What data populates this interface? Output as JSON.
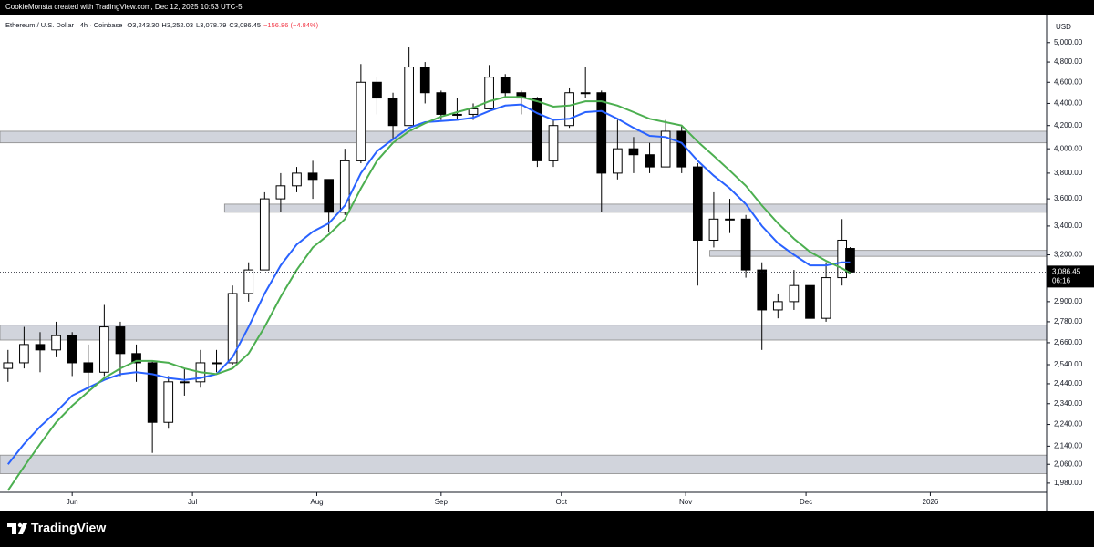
{
  "chart_data": {
    "type": "candlestick",
    "attribution": "CookieMonsta created with TradingView.com, Dec 12, 2025 10:53 UTC-5",
    "symbol": "Ethereum / U.S. Dollar · 4h · Coinbase",
    "ohlc_labels": [
      "O3,243.30",
      "H3,252.03",
      "L3,078.79",
      "C3,086.45",
      "−156.86 (−4.84%)"
    ],
    "currency": "USD",
    "branding": "TradingView",
    "log_scale": true,
    "ylim": [
      1942,
      5304
    ],
    "yticks": [
      {
        "value": 5000,
        "label": "5,000.00"
      },
      {
        "value": 4800,
        "label": "4,800.00"
      },
      {
        "value": 4600,
        "label": "4,600.00"
      },
      {
        "value": 4400,
        "label": "4,400.00"
      },
      {
        "value": 4200,
        "label": "4,200.00"
      },
      {
        "value": 4000,
        "label": "4,000.00"
      },
      {
        "value": 3800,
        "label": "3,800.00"
      },
      {
        "value": 3600,
        "label": "3,600.00"
      },
      {
        "value": 3400,
        "label": "3,400.00"
      },
      {
        "value": 3200,
        "label": "3,200.00"
      },
      {
        "value": 2900,
        "label": "2,900.00"
      },
      {
        "value": 2780,
        "label": "2,780.00"
      },
      {
        "value": 2660,
        "label": "2,660.00"
      },
      {
        "value": 2540,
        "label": "2,540.00"
      },
      {
        "value": 2440,
        "label": "2,440.00"
      },
      {
        "value": 2340,
        "label": "2,340.00"
      },
      {
        "value": 2240,
        "label": "2,240.00"
      },
      {
        "value": 2140,
        "label": "2,140.00"
      },
      {
        "value": 2060,
        "label": "2,060.00"
      },
      {
        "value": 1980,
        "label": "1,980.00"
      }
    ],
    "xlim": [
      "2025-05-14",
      "2026-01-30"
    ],
    "xticks": [
      {
        "value": "2025-06-01",
        "label": "Jun"
      },
      {
        "value": "2025-07-01",
        "label": "Jul"
      },
      {
        "value": "2025-08-01",
        "label": "Aug"
      },
      {
        "value": "2025-09-01",
        "label": "Sep"
      },
      {
        "value": "2025-10-01",
        "label": "Oct"
      },
      {
        "value": "2025-11-01",
        "label": "Nov"
      },
      {
        "value": "2025-12-01",
        "label": "Dec"
      },
      {
        "value": "2026-01-01",
        "label": "2026"
      }
    ],
    "last_price": {
      "value": 3086.45,
      "label": "3,086.45"
    },
    "countdown": "06:16",
    "x": [
      "2025-05-16",
      "2025-05-20",
      "2025-05-24",
      "2025-05-28",
      "2025-06-01",
      "2025-06-05",
      "2025-06-09",
      "2025-06-13",
      "2025-06-17",
      "2025-06-21",
      "2025-06-25",
      "2025-06-29",
      "2025-07-03",
      "2025-07-07",
      "2025-07-11",
      "2025-07-15",
      "2025-07-19",
      "2025-07-23",
      "2025-07-27",
      "2025-07-31",
      "2025-08-04",
      "2025-08-08",
      "2025-08-12",
      "2025-08-16",
      "2025-08-20",
      "2025-08-24",
      "2025-08-28",
      "2025-09-01",
      "2025-09-05",
      "2025-09-09",
      "2025-09-13",
      "2025-09-17",
      "2025-09-21",
      "2025-09-25",
      "2025-09-29",
      "2025-10-03",
      "2025-10-07",
      "2025-10-11",
      "2025-10-15",
      "2025-10-19",
      "2025-10-23",
      "2025-10-27",
      "2025-10-31",
      "2025-11-04",
      "2025-11-08",
      "2025-11-12",
      "2025-11-16",
      "2025-11-20",
      "2025-11-24",
      "2025-11-28",
      "2025-12-02",
      "2025-12-06",
      "2025-12-10",
      "2025-12-12"
    ],
    "open": [
      2520,
      2550,
      2650,
      2620,
      2700,
      2550,
      2500,
      2750,
      2600,
      2550,
      2250,
      2450,
      2450,
      2550,
      2550,
      2950,
      3100,
      3600,
      3700,
      3800,
      3750,
      3500,
      3900,
      4600,
      4450,
      4200,
      4750,
      4500,
      4300,
      4300,
      4350,
      4650,
      4500,
      4450,
      3900,
      4200,
      4500,
      4500,
      3800,
      4000,
      3950,
      3850,
      4150,
      3850,
      3300,
      3450,
      3450,
      3100,
      2850,
      2900,
      3000,
      2800,
      3050,
      3243.3
    ],
    "high": [
      2620,
      2750,
      2720,
      2780,
      2720,
      2650,
      2880,
      2780,
      2650,
      2560,
      2480,
      2520,
      2620,
      2620,
      3000,
      3150,
      3650,
      3800,
      3850,
      3900,
      3750,
      4000,
      4780,
      4650,
      4500,
      4950,
      4800,
      4520,
      4450,
      4400,
      4770,
      4680,
      4520,
      4460,
      4250,
      4550,
      4750,
      4520,
      4250,
      4100,
      4050,
      4250,
      4200,
      3880,
      3650,
      3600,
      3480,
      3150,
      2950,
      3100,
      3050,
      3150,
      3450,
      3252.03
    ],
    "low": [
      2450,
      2520,
      2500,
      2580,
      2480,
      2400,
      2480,
      2480,
      2450,
      2110,
      2220,
      2380,
      2420,
      2500,
      2540,
      2900,
      3100,
      3500,
      3650,
      3600,
      3360,
      3480,
      3880,
      4300,
      4080,
      4200,
      4400,
      4250,
      4250,
      4250,
      4350,
      4450,
      4300,
      3850,
      3850,
      4180,
      4450,
      3500,
      3750,
      3800,
      3800,
      3850,
      3800,
      3000,
      3250,
      3350,
      3050,
      2620,
      2800,
      2850,
      2720,
      2780,
      3000,
      3078.79
    ],
    "close": [
      2550,
      2650,
      2620,
      2700,
      2550,
      2500,
      2750,
      2600,
      2550,
      2250,
      2450,
      2450,
      2550,
      2550,
      2950,
      3100,
      3600,
      3700,
      3800,
      3750,
      3500,
      3900,
      4600,
      4450,
      4200,
      4750,
      4500,
      4300,
      4300,
      4350,
      4650,
      4500,
      4450,
      3900,
      4200,
      4500,
      4500,
      3800,
      4000,
      3950,
      3850,
      4150,
      3850,
      3300,
      3450,
      3450,
      3100,
      2850,
      2900,
      3000,
      2800,
      3050,
      3300,
      3086.45
    ],
    "moving_averages": [
      {
        "color": "#2962ff",
        "values": [
          2060,
          2150,
          2230,
          2300,
          2380,
          2420,
          2460,
          2490,
          2500,
          2490,
          2470,
          2460,
          2470,
          2490,
          2580,
          2750,
          2950,
          3130,
          3270,
          3360,
          3420,
          3550,
          3800,
          3980,
          4080,
          4180,
          4230,
          4240,
          4250,
          4270,
          4330,
          4380,
          4390,
          4310,
          4250,
          4260,
          4320,
          4330,
          4260,
          4180,
          4110,
          4100,
          4050,
          3900,
          3780,
          3680,
          3560,
          3400,
          3280,
          3200,
          3130,
          3130,
          3150,
          3150
        ]
      },
      {
        "color": "#4caf50",
        "values": [
          1950,
          2050,
          2150,
          2250,
          2330,
          2400,
          2470,
          2520,
          2560,
          2560,
          2550,
          2520,
          2500,
          2490,
          2520,
          2600,
          2750,
          2930,
          3100,
          3250,
          3340,
          3450,
          3680,
          3900,
          4050,
          4150,
          4220,
          4280,
          4320,
          4360,
          4420,
          4460,
          4460,
          4420,
          4370,
          4380,
          4420,
          4420,
          4380,
          4320,
          4260,
          4230,
          4200,
          4060,
          3940,
          3820,
          3700,
          3550,
          3420,
          3310,
          3220,
          3160,
          3110,
          3080
        ]
      }
    ],
    "zones": [
      {
        "low": 4050,
        "high": 4150
      },
      {
        "low": 3500,
        "high": 3560,
        "start": "2025-07-09"
      },
      {
        "low": 3190,
        "high": 3230,
        "start": "2025-11-07"
      },
      {
        "low": 2675,
        "high": 2760
      },
      {
        "low": 2020,
        "high": 2100
      }
    ]
  }
}
